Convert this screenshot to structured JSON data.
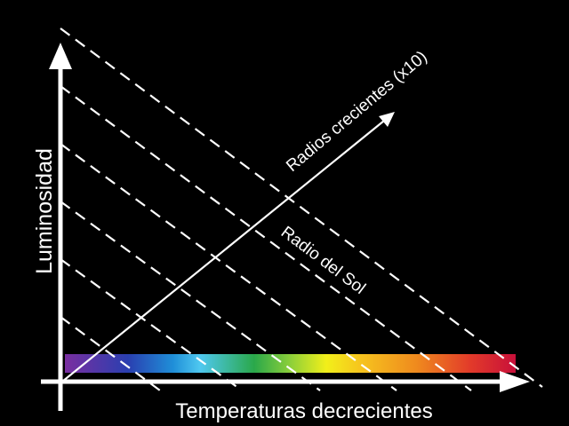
{
  "labels": {
    "y_axis": "Luminosidad",
    "x_axis": "Temperaturas decrecientes",
    "radius_arrow": "Radios crecientes (x10)",
    "sun_line": "Radio del Sol"
  },
  "colors": {
    "background": "#000000",
    "lines": "#ffffff",
    "spectrum": [
      "#7a2fa0",
      "#2a3fb0",
      "#1f8fd8",
      "#4fc8f0",
      "#2aa84a",
      "#8ccf3a",
      "#f2ef1a",
      "#f6c21e",
      "#ef8a1e",
      "#e23a2a",
      "#c8103a"
    ]
  },
  "iso_radius_line_count": 6
}
